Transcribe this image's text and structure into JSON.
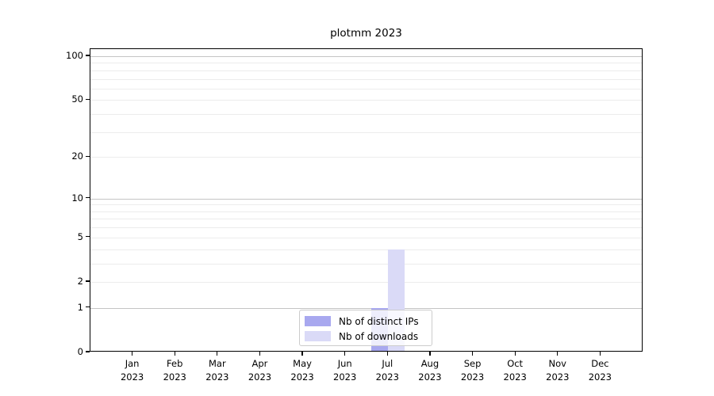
{
  "chart_data": {
    "type": "bar",
    "title": "plotmm 2023",
    "categories": [
      {
        "month": "Jan",
        "year": "2023"
      },
      {
        "month": "Feb",
        "year": "2023"
      },
      {
        "month": "Mar",
        "year": "2023"
      },
      {
        "month": "Apr",
        "year": "2023"
      },
      {
        "month": "May",
        "year": "2023"
      },
      {
        "month": "Jun",
        "year": "2023"
      },
      {
        "month": "Jul",
        "year": "2023"
      },
      {
        "month": "Aug",
        "year": "2023"
      },
      {
        "month": "Sep",
        "year": "2023"
      },
      {
        "month": "Oct",
        "year": "2023"
      },
      {
        "month": "Nov",
        "year": "2023"
      },
      {
        "month": "Dec",
        "year": "2023"
      }
    ],
    "series": [
      {
        "name": "Nb of distinct IPs",
        "color": "#a8a8ef",
        "values": [
          0,
          0,
          0,
          0,
          0,
          0,
          1,
          0,
          0,
          0,
          0,
          0
        ]
      },
      {
        "name": "Nb of downloads",
        "color": "#dadaf7",
        "values": [
          0,
          0,
          0,
          0,
          0,
          0,
          4,
          0,
          0,
          0,
          0,
          0
        ]
      }
    ],
    "yscale": "log1p",
    "ylim": [
      0,
      100
    ],
    "yticks": [
      0,
      1,
      2,
      5,
      10,
      20,
      50,
      100
    ],
    "grid": {
      "major": [
        1,
        10,
        100
      ],
      "minor": [
        2,
        3,
        4,
        5,
        6,
        7,
        8,
        9,
        20,
        30,
        40,
        50,
        60,
        70,
        80,
        90
      ]
    },
    "legend_position": "lower center",
    "xlabel": "",
    "ylabel": ""
  },
  "colors": {
    "grid_major": "#c4c4c4",
    "grid_minor": "#ececec",
    "axis": "#000000",
    "legend_border": "#cccccc",
    "background": "#ffffff"
  }
}
